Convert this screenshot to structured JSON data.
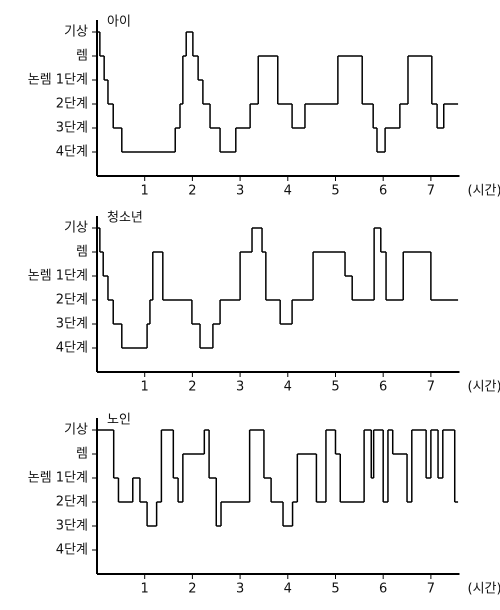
{
  "chart_data": [
    {
      "type": "line",
      "step": "post",
      "title": "아이",
      "xlabel": "(시간)",
      "color": "#000000",
      "xlim": [
        0,
        7.6
      ],
      "xticks": [
        1,
        2,
        3,
        4,
        5,
        6,
        7
      ],
      "ylim": [
        0,
        6.5
      ],
      "yticks": [
        {
          "value": 6,
          "label": "기상"
        },
        {
          "value": 5,
          "label": "렘"
        },
        {
          "value": 4,
          "label": "논렘 1단계"
        },
        {
          "value": 3,
          "label": "2단계"
        },
        {
          "value": 2,
          "label": "3단계"
        },
        {
          "value": 1,
          "label": "4단계"
        }
      ],
      "x": [
        0,
        0.06,
        0.15,
        0.23,
        0.34,
        0.52,
        1.64,
        1.74,
        1.8,
        1.87,
        2.01,
        2.12,
        2.22,
        2.37,
        2.58,
        2.91,
        3.21,
        3.38,
        3.79,
        4.09,
        4.36,
        5.05,
        5.56,
        5.79,
        5.87,
        6.04,
        6.35,
        6.52,
        7.02,
        7.13,
        7.27,
        7.57
      ],
      "values": [
        6,
        5,
        4,
        3,
        2,
        1,
        2,
        3,
        5,
        6,
        5,
        4,
        3,
        2,
        1,
        2,
        3,
        5,
        3,
        2,
        3,
        5,
        3,
        2,
        1,
        2,
        3,
        5,
        3,
        2,
        3,
        3
      ]
    },
    {
      "type": "line",
      "step": "post",
      "title": "청소년",
      "xlabel": "(시간)",
      "color": "#000000",
      "xlim": [
        0,
        7.6
      ],
      "xticks": [
        1,
        2,
        3,
        4,
        5,
        6,
        7
      ],
      "ylim": [
        0,
        6.5
      ],
      "yticks": [
        {
          "value": 6,
          "label": "기상"
        },
        {
          "value": 5,
          "label": "렘"
        },
        {
          "value": 4,
          "label": "논렘 1단계"
        },
        {
          "value": 3,
          "label": "2단계"
        },
        {
          "value": 2,
          "label": "3단계"
        },
        {
          "value": 1,
          "label": "4단계"
        }
      ],
      "x": [
        0,
        0.06,
        0.13,
        0.23,
        0.34,
        0.52,
        1.05,
        1.11,
        1.17,
        1.38,
        1.99,
        2.16,
        2.43,
        2.58,
        3.0,
        3.25,
        3.46,
        3.54,
        3.84,
        4.09,
        4.53,
        5.2,
        5.35,
        5.81,
        5.95,
        6.06,
        6.42,
        7.0,
        7.57
      ],
      "values": [
        6,
        5,
        4,
        3,
        2,
        1,
        2,
        3,
        5,
        3,
        2,
        1,
        2,
        3,
        5,
        6,
        5,
        3,
        2,
        3,
        5,
        4,
        3,
        6,
        5,
        3,
        5,
        3,
        3
      ]
    },
    {
      "type": "line",
      "step": "post",
      "title": "노인",
      "xlabel": "(시간)",
      "color": "#000000",
      "xlim": [
        0,
        7.6
      ],
      "xticks": [
        1,
        2,
        3,
        4,
        5,
        6,
        7
      ],
      "ylim": [
        0,
        6.5
      ],
      "yticks": [
        {
          "value": 6,
          "label": "기상"
        },
        {
          "value": 5,
          "label": "렘"
        },
        {
          "value": 4,
          "label": "논렘 1단계"
        },
        {
          "value": 3,
          "label": "2단계"
        },
        {
          "value": 2,
          "label": "3단계"
        },
        {
          "value": 1,
          "label": "4단계"
        }
      ],
      "x": [
        0,
        0.35,
        0.45,
        0.75,
        0.9,
        1.05,
        1.25,
        1.35,
        1.6,
        1.7,
        1.8,
        2.25,
        2.35,
        2.5,
        2.6,
        3.2,
        3.5,
        3.65,
        3.9,
        4.1,
        4.2,
        4.6,
        4.8,
        5.0,
        5.1,
        5.6,
        5.75,
        5.8,
        6.0,
        6.1,
        6.2,
        6.5,
        6.6,
        6.9,
        7.0,
        7.15,
        7.25,
        7.5,
        7.57
      ],
      "values": [
        6,
        4,
        3,
        4,
        3,
        2,
        3,
        6,
        4,
        3,
        5,
        6,
        4,
        2,
        3,
        6,
        4,
        3,
        2,
        3,
        5,
        3,
        6,
        5,
        3,
        6,
        4,
        6,
        3,
        6,
        5,
        3,
        6,
        4,
        6,
        4,
        6,
        3,
        3
      ]
    }
  ]
}
